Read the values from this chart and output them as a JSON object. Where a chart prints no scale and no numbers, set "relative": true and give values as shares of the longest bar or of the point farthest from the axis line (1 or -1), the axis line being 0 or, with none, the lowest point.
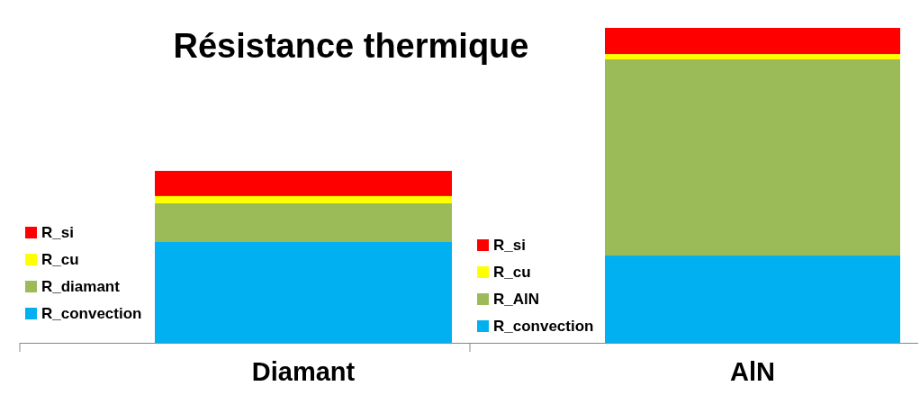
{
  "chart_data": {
    "type": "bar",
    "title": "Résistance thermique",
    "categories": [
      "Diamant",
      "AlN"
    ],
    "stacked": true,
    "relative": true,
    "legend": "left",
    "series": [
      {
        "name": "R_convection",
        "color": "#00b0f0",
        "values": [
          0.32,
          0.277
        ]
      },
      {
        "name": "R_diamant",
        "color": "#9bbb59",
        "values": [
          0.123,
          null
        ]
      },
      {
        "name": "R_AlN",
        "color": "#9bbb59",
        "values": [
          null,
          0.623
        ]
      },
      {
        "name": "R_cu",
        "color": "#ffff00",
        "values": [
          0.023,
          0.017
        ]
      },
      {
        "name": "R_si",
        "color": "#ff0000",
        "values": [
          0.08,
          0.083
        ]
      }
    ]
  }
}
